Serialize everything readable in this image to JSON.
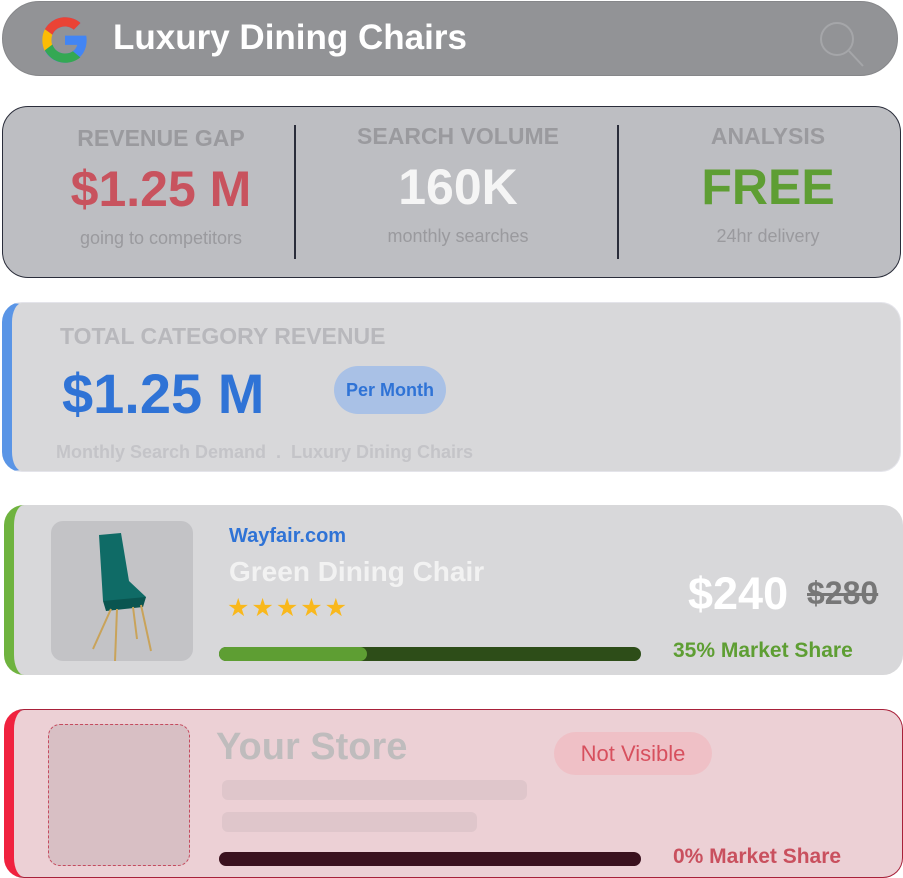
{
  "search": {
    "query": "Luxury Dining Chairs",
    "logo": "google-g-logo",
    "icon": "search-icon"
  },
  "stats": [
    {
      "label": "REVENUE GAP",
      "value": "$1.25 M",
      "sub": "going to competitors",
      "color": "#c8535e"
    },
    {
      "label": "SEARCH VOLUME",
      "value": "160K",
      "sub": "monthly searches",
      "color": "#f5f5f5"
    },
    {
      "label": "ANALYSIS",
      "value": "FREE",
      "sub": "24hr delivery",
      "color": "#5e9e33"
    }
  ],
  "total": {
    "label": "TOTAL CATEGORY REVENUE",
    "value": "$1.25 M",
    "badge": "Per Month",
    "sub": "Monthly Search Demand  .  Luxury Dining Chairs",
    "accent": "#5a95e6"
  },
  "competitor": {
    "site": "Wayfair.com",
    "product": "Green Dining Chair",
    "stars": "★★★★★",
    "rating": 5,
    "price": "$240",
    "old_price": "$280",
    "market_share_pct": 35,
    "share_label": "35% Market Share",
    "accent": "#6fb33f"
  },
  "store": {
    "name": "Your Store",
    "badge": "Not Visible",
    "market_share_pct": 0,
    "share_label": "0% Market Share",
    "accent": "#f0223f"
  }
}
